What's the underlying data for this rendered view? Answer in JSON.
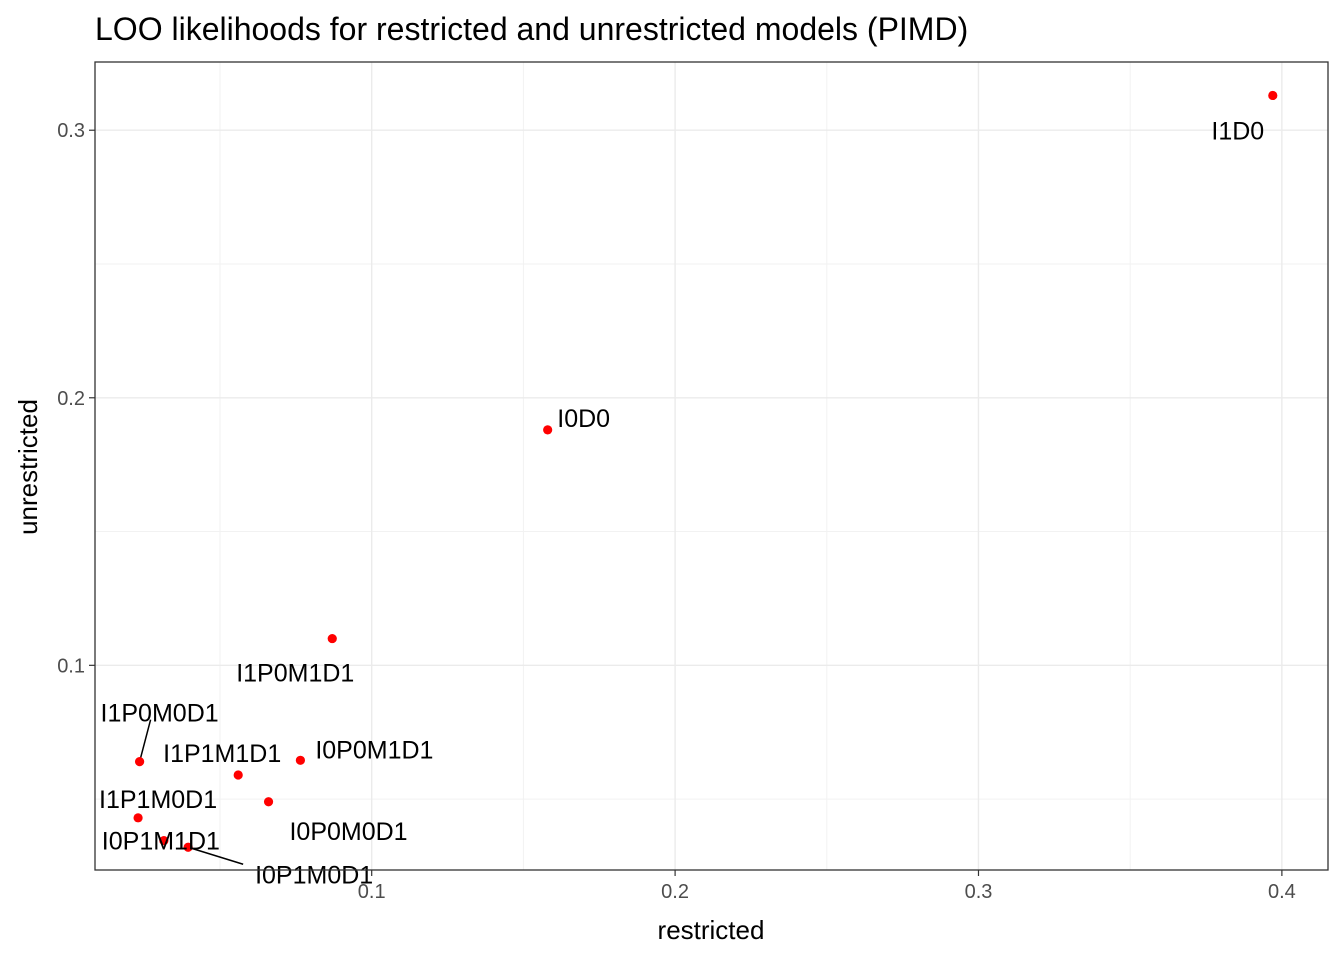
{
  "chart_data": {
    "type": "scatter",
    "title": "LOO likelihoods for restricted and unrestricted models (PIMD)",
    "xlabel": "restricted",
    "ylabel": "unrestricted",
    "xlim": [
      0.0088,
      0.4152
    ],
    "ylim": [
      0.0235,
      0.3255
    ],
    "x_ticks": [
      0.1,
      0.2,
      0.3,
      0.4
    ],
    "x_tick_labels": [
      "0.1",
      "0.2",
      "0.3",
      "0.4"
    ],
    "y_ticks": [
      0.1,
      0.2,
      0.3
    ],
    "y_tick_labels": [
      "0.1",
      "0.2",
      "0.3"
    ],
    "grid": true,
    "point_color": "#ff0000",
    "points": [
      {
        "label": "I1D0",
        "x": 0.397,
        "y": 0.313
      },
      {
        "label": "I0D0",
        "x": 0.158,
        "y": 0.188
      },
      {
        "label": "I1P0M1D1",
        "x": 0.087,
        "y": 0.11
      },
      {
        "label": "I1P0M0D1",
        "x": 0.0235,
        "y": 0.064
      },
      {
        "label": "I1P1M1D1",
        "x": 0.056,
        "y": 0.059
      },
      {
        "label": "I0P0M1D1",
        "x": 0.0765,
        "y": 0.0645
      },
      {
        "label": "I1P1M0D1",
        "x": 0.023,
        "y": 0.043
      },
      {
        "label": "I0P0M0D1",
        "x": 0.066,
        "y": 0.049
      },
      {
        "label": "I0P1M1D1",
        "x": 0.0315,
        "y": 0.0345
      },
      {
        "label": "I0P1M0D1",
        "x": 0.0395,
        "y": 0.032
      }
    ]
  }
}
